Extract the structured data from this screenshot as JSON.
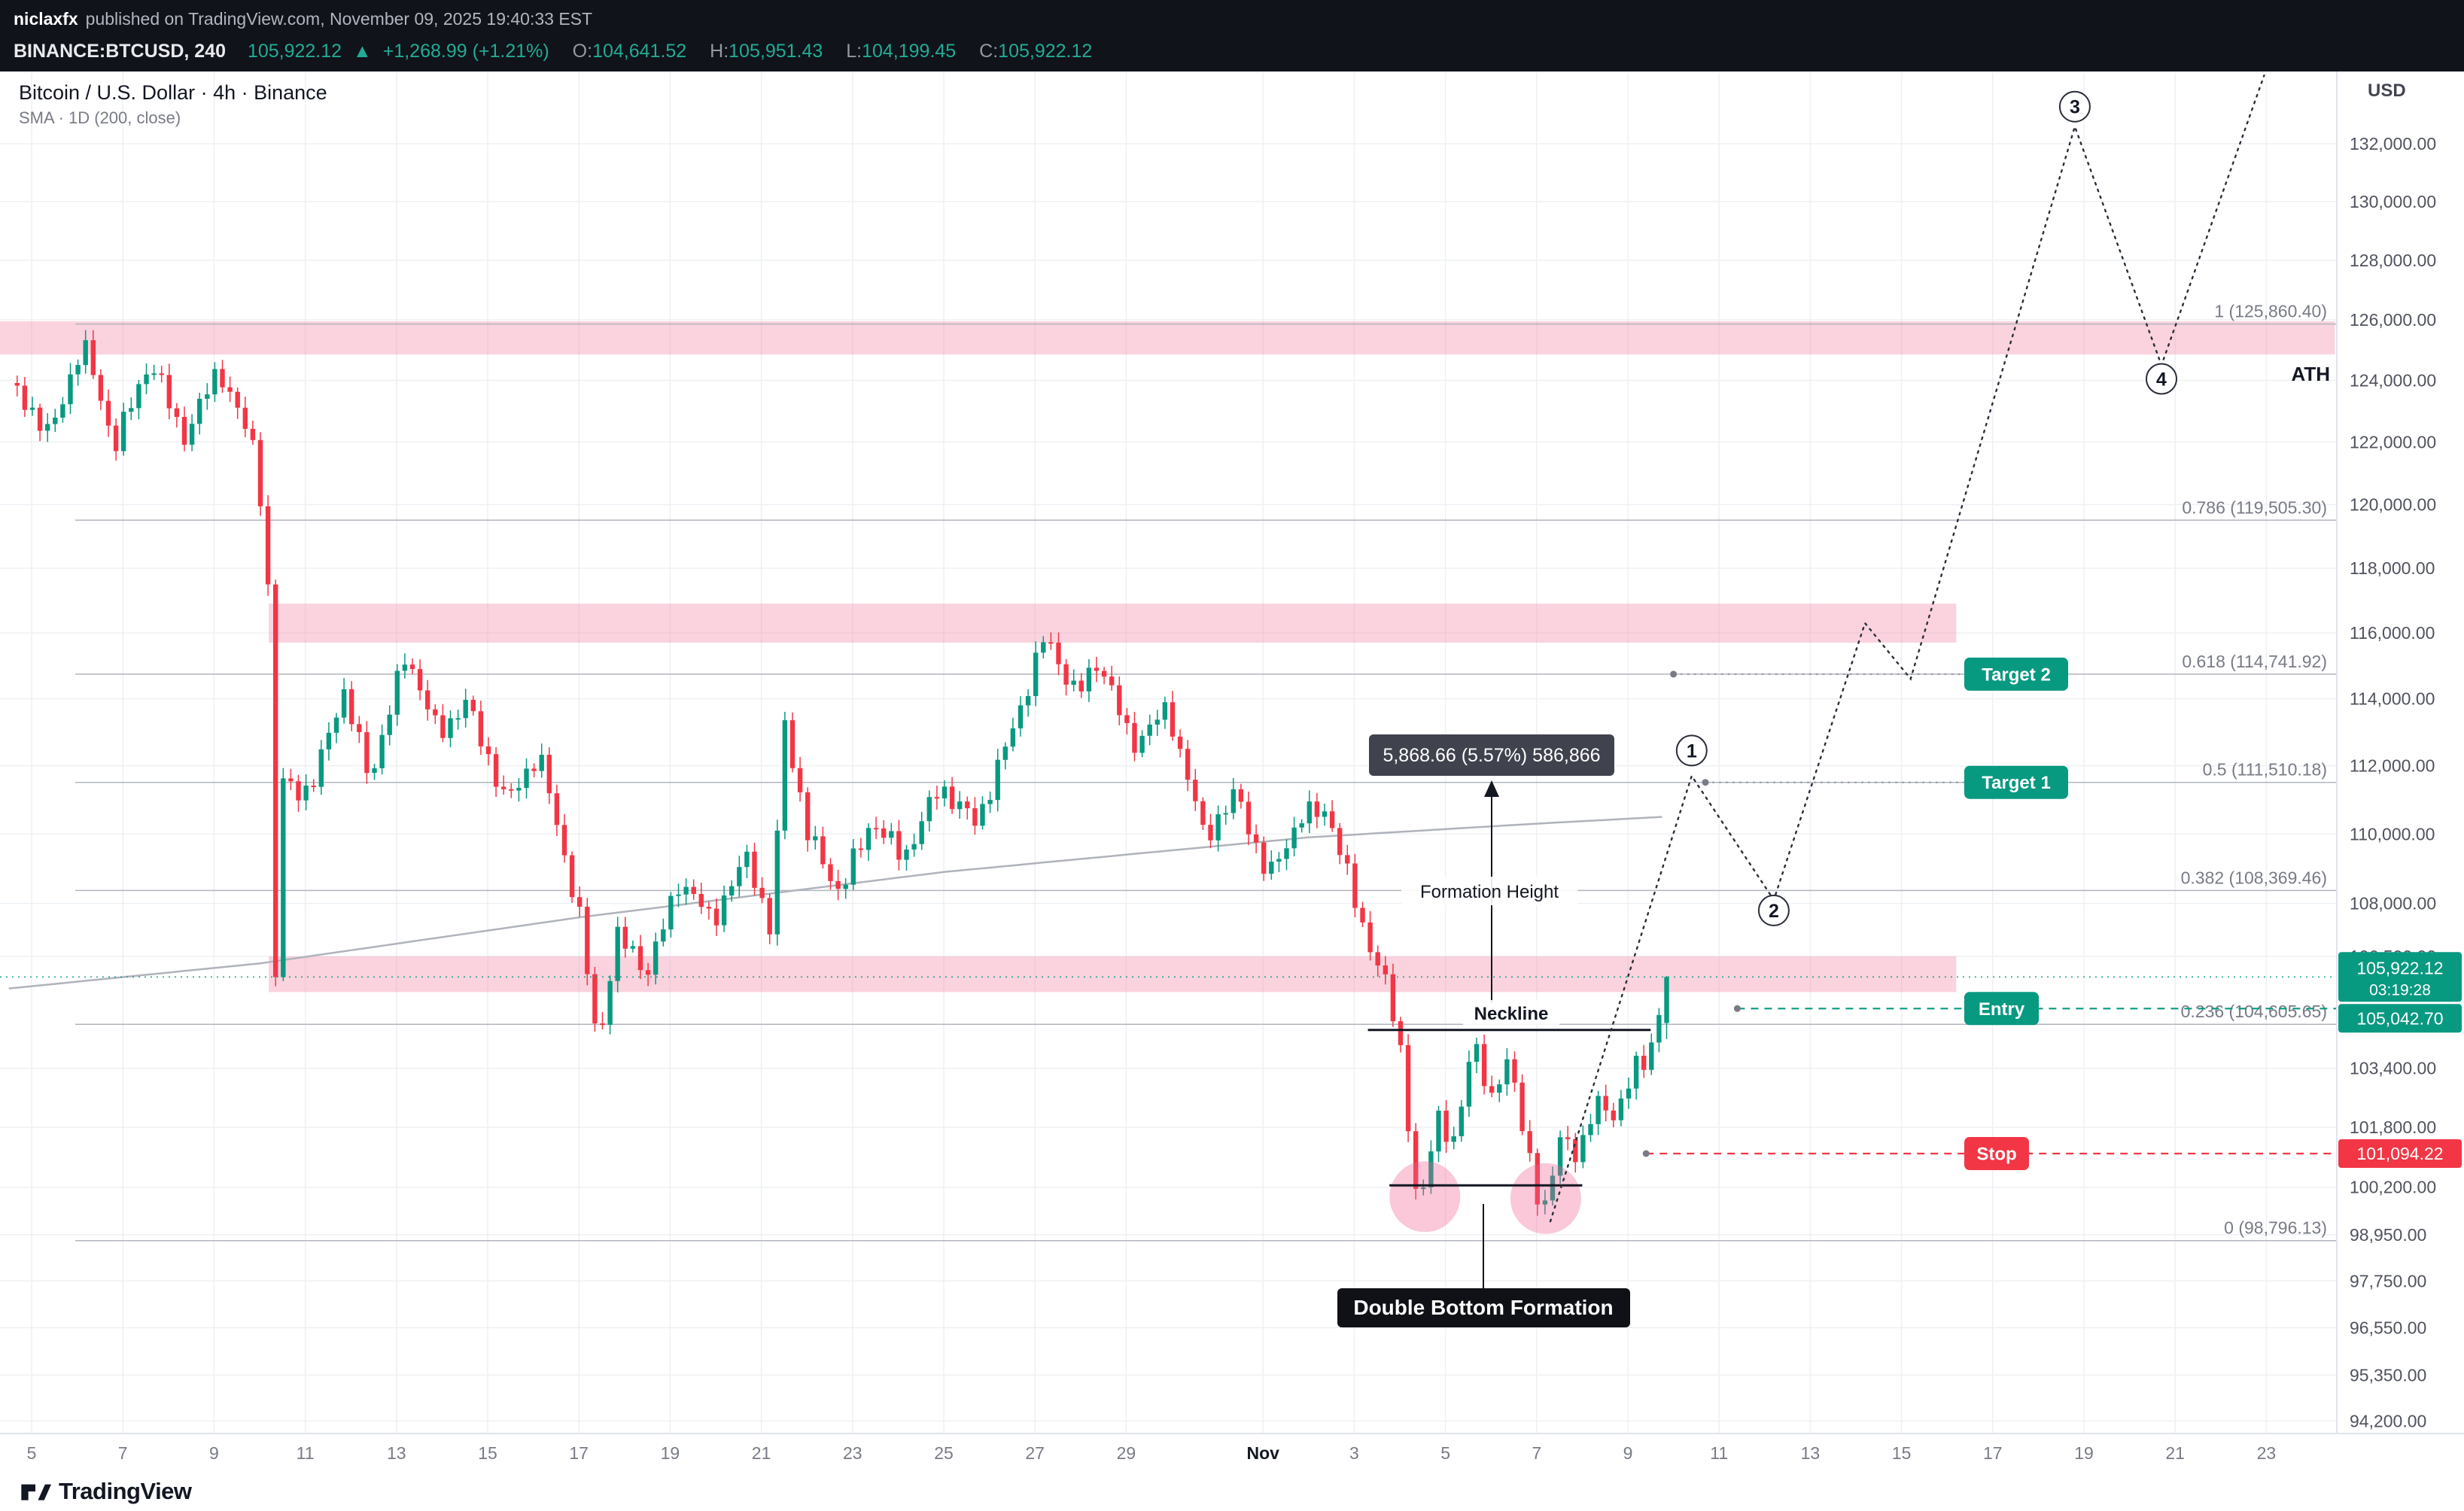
{
  "colors": {
    "up": "#089981",
    "down": "#f23645",
    "zone_pink": "rgba(242,139,168,0.38)",
    "fib_gray": "#787b86",
    "grid": "#eef0f3",
    "sma": "#b0b3bc",
    "projection": "#2a2e39",
    "measure_box": "#40434e",
    "double_bottom_box": "#0f1116"
  },
  "header": {
    "author": "niclaxfx",
    "published_text": "published on TradingView.com, November 09, 2025 19:40:33 EST",
    "quote": {
      "symbol": "BINANCE:BTCUSD, 240",
      "last": "105,922.12",
      "direction": "▲",
      "change": "+1,268.99 (+1.21%)",
      "o_label": "O:",
      "o": "104,641.52",
      "h_label": "H:",
      "h": "105,951.43",
      "l_label": "L:",
      "l": "104,199.45",
      "c_label": "C:",
      "c": "105,922.12"
    }
  },
  "legend": {
    "title": "Bitcoin / U.S. Dollar · 4h · Binance",
    "indicator": "SMA · 1D (200, close)"
  },
  "footer": {
    "brand": "TradingView"
  },
  "price_axis": {
    "currency": "USD",
    "labels": [
      {
        "text": "132,000.00",
        "price": 132000
      },
      {
        "text": "130,000.00",
        "price": 130000
      },
      {
        "text": "128,000.00",
        "price": 128000
      },
      {
        "text": "126,000.00",
        "price": 126000
      },
      {
        "text": "124,000.00",
        "price": 124000
      },
      {
        "text": "122,000.00",
        "price": 122000
      },
      {
        "text": "120,000.00",
        "price": 120000
      },
      {
        "text": "118,000.00",
        "price": 118000
      },
      {
        "text": "116,000.00",
        "price": 116000
      },
      {
        "text": "114,000.00",
        "price": 114000
      },
      {
        "text": "112,000.00",
        "price": 112000
      },
      {
        "text": "110,000.00",
        "price": 110000
      },
      {
        "text": "108,000.00",
        "price": 108000
      },
      {
        "text": "106,500.00",
        "price": 106500
      },
      {
        "text": "103,400.00",
        "price": 103400
      },
      {
        "text": "101,800.00",
        "price": 101800
      },
      {
        "text": "100,200.00",
        "price": 100200
      },
      {
        "text": "98,950.00",
        "price": 98950
      },
      {
        "text": "97,750.00",
        "price": 97750
      },
      {
        "text": "96,550.00",
        "price": 96550
      },
      {
        "text": "95,350.00",
        "price": 95350
      },
      {
        "text": "94,200.00",
        "price": 94200
      }
    ],
    "badges": [
      {
        "name": "last-price-badge",
        "text": "105,922.12",
        "countdown": "03:19:28",
        "price": 105922.12,
        "color": "#089981"
      },
      {
        "name": "entry-price-badge",
        "text": "105,042.70",
        "price": 105042.7,
        "color": "#089981"
      },
      {
        "name": "stop-price-badge",
        "text": "101,094.22",
        "price": 101094.22,
        "color": "#f23645"
      }
    ]
  },
  "time_axis": {
    "labels": [
      {
        "text": "5",
        "day": 0
      },
      {
        "text": "7",
        "day": 2
      },
      {
        "text": "9",
        "day": 4
      },
      {
        "text": "11",
        "day": 6
      },
      {
        "text": "13",
        "day": 8
      },
      {
        "text": "15",
        "day": 10
      },
      {
        "text": "17",
        "day": 12
      },
      {
        "text": "19",
        "day": 14
      },
      {
        "text": "21",
        "day": 16
      },
      {
        "text": "23",
        "day": 18
      },
      {
        "text": "25",
        "day": 20
      },
      {
        "text": "27",
        "day": 22
      },
      {
        "text": "29",
        "day": 24
      },
      {
        "text": "Nov",
        "day": 27,
        "bold": true
      },
      {
        "text": "3",
        "day": 29
      },
      {
        "text": "5",
        "day": 31
      },
      {
        "text": "7",
        "day": 33
      },
      {
        "text": "9",
        "day": 35
      },
      {
        "text": "11",
        "day": 37
      },
      {
        "text": "13",
        "day": 39
      },
      {
        "text": "15",
        "day": 41
      },
      {
        "text": "17",
        "day": 43
      },
      {
        "text": "19",
        "day": 45
      },
      {
        "text": "21",
        "day": 47
      },
      {
        "text": "23",
        "day": 49
      }
    ]
  },
  "annotations": {
    "ath_label": "ATH",
    "measure_label": "5,868.66 (5.57%) 586,866",
    "formation_height_label": "Formation Height",
    "neckline_label": "Neckline",
    "double_bottom_label": "Double Bottom Formation",
    "trade_labels": [
      {
        "name": "target-2",
        "text": "Target 2",
        "price": 114741.92,
        "color": "#089981",
        "leader_start": 36.0
      },
      {
        "name": "target-1",
        "text": "Target 1",
        "price": 111510.18,
        "color": "#089981",
        "leader_start": 36.7
      },
      {
        "name": "entry",
        "text": "Entry",
        "price": 105042.7,
        "color": "#089981"
      },
      {
        "name": "stop",
        "text": "Stop",
        "price": 101094.22,
        "color": "#f23645"
      }
    ],
    "wave_markers": [
      {
        "label": "1",
        "day": 36.4,
        "price": 112450
      },
      {
        "label": "2",
        "day": 38.2,
        "price": 107800
      },
      {
        "label": "3",
        "day": 44.8,
        "price": 133300
      },
      {
        "label": "4",
        "day": 46.7,
        "price": 124050
      }
    ]
  },
  "chart_data": {
    "type": "candlestick",
    "symbol": "BINANCE:BTCUSD",
    "interval": "4h",
    "title": "Bitcoin / U.S. Dollar · 4h · Binance",
    "yscale": "log",
    "ylim": [
      93890,
      134540
    ],
    "x_unit": "days since Oct 5, 2025",
    "xlim": [
      -0.7,
      50.5
    ],
    "candles_per_day": 6,
    "t_start": -0.4,
    "candle_count": 218,
    "last_candle": {
      "o": 104641.52,
      "h": 105951.43,
      "l": 104199.45,
      "c": 105922.12
    },
    "price_path": [
      [
        -0.4,
        123800
      ],
      [
        0,
        123200
      ],
      [
        0.5,
        122200
      ],
      [
        1.2,
        125300
      ],
      [
        1.9,
        121900
      ],
      [
        2.7,
        124700
      ],
      [
        3.4,
        122100
      ],
      [
        4.2,
        124400
      ],
      [
        5.0,
        121600
      ],
      [
        5.25,
        118500
      ],
      [
        5.45,
        104800
      ],
      [
        5.6,
        111500
      ],
      [
        6.2,
        111200
      ],
      [
        6.9,
        114300
      ],
      [
        7.5,
        111600
      ],
      [
        8.3,
        115400
      ],
      [
        9.0,
        112900
      ],
      [
        9.6,
        113900
      ],
      [
        10.5,
        110900
      ],
      [
        11.2,
        112400
      ],
      [
        12.1,
        107600
      ],
      [
        12.5,
        103900
      ],
      [
        12.9,
        107100
      ],
      [
        13.6,
        106100
      ],
      [
        14.3,
        108700
      ],
      [
        15.0,
        107500
      ],
      [
        15.8,
        109400
      ],
      [
        16.3,
        107100
      ],
      [
        16.6,
        113300
      ],
      [
        17.1,
        110000
      ],
      [
        17.8,
        108300
      ],
      [
        18.5,
        110400
      ],
      [
        19.2,
        109300
      ],
      [
        20.0,
        111400
      ],
      [
        20.8,
        110300
      ],
      [
        21.6,
        113100
      ],
      [
        22.3,
        115900
      ],
      [
        23.0,
        114100
      ],
      [
        23.5,
        115200
      ],
      [
        24.2,
        112600
      ],
      [
        25.0,
        113700
      ],
      [
        25.8,
        109900
      ],
      [
        26.5,
        111200
      ],
      [
        27.2,
        108700
      ],
      [
        27.9,
        110500
      ],
      [
        28.5,
        110700
      ],
      [
        29.2,
        107600
      ],
      [
        29.8,
        105600
      ],
      [
        30.1,
        103900
      ],
      [
        30.5,
        99300
      ],
      [
        30.9,
        102200
      ],
      [
        31.3,
        101300
      ],
      [
        31.7,
        104300
      ],
      [
        32.1,
        102500
      ],
      [
        32.5,
        103700
      ],
      [
        32.9,
        101100
      ],
      [
        33.2,
        99200
      ],
      [
        33.6,
        101700
      ],
      [
        34.0,
        100800
      ],
      [
        34.4,
        102800
      ],
      [
        34.7,
        101900
      ],
      [
        35.0,
        102400
      ],
      [
        35.2,
        103900
      ],
      [
        35.4,
        103300
      ],
      [
        35.77,
        104641
      ],
      [
        35.93,
        105922
      ]
    ],
    "sma_200d_path": [
      [
        -0.5,
        105600
      ],
      [
        5,
        106300
      ],
      [
        12,
        107600
      ],
      [
        20,
        108900
      ],
      [
        28,
        109900
      ],
      [
        33,
        110300
      ],
      [
        35.8,
        110500
      ]
    ],
    "projection_path": [
      [
        33.3,
        99300
      ],
      [
        36.4,
        111700
      ],
      [
        38.2,
        108100
      ],
      [
        40.2,
        116300
      ],
      [
        41.2,
        114600
      ],
      [
        44.8,
        132600
      ],
      [
        46.7,
        124500
      ],
      [
        48.95,
        134400
      ]
    ],
    "fib_retracement": {
      "levels": [
        {
          "level": 1,
          "price": 125860.4,
          "text": "1 (125,860.40)"
        },
        {
          "level": 0.786,
          "price": 119505.3,
          "text": "0.786 (119,505.30)"
        },
        {
          "level": 0.618,
          "price": 114741.92,
          "text": "0.618 (114,741.92)"
        },
        {
          "level": 0.5,
          "price": 111510.18,
          "text": "0.5 (111,510.18)"
        },
        {
          "level": 0.382,
          "price": 108369.46,
          "text": "0.382 (108,369.46)"
        },
        {
          "level": 0.236,
          "price": 104605.65,
          "text": "0.236 (104,605.65)"
        },
        {
          "level": 0,
          "price": 98796.13,
          "text": "0 (98,796.13)"
        }
      ]
    },
    "supply_zones": [
      {
        "price_range": [
          124850,
          125950
        ],
        "day_range": [
          -0.7,
          50.5
        ]
      },
      {
        "price_range": [
          115700,
          116900
        ],
        "day_range": [
          5.2,
          42.2
        ]
      },
      {
        "price_range": [
          105500,
          106500
        ],
        "day_range": [
          5.2,
          42.2
        ]
      }
    ],
    "key_lines": {
      "current_price_line": {
        "price": 105922.12
      },
      "neckline": {
        "price": 104450,
        "day_range": [
          29.3,
          35.5
        ]
      },
      "double_bottom_connector": {
        "price": 100250,
        "day_range": [
          29.77,
          34.0
        ]
      },
      "entry_line": {
        "price": 105042.7,
        "day_start": 37.4
      },
      "stop_line": {
        "price": 101094.22,
        "day_start": 35.4
      }
    },
    "double_bottom_circles": [
      {
        "day": 30.55,
        "price": 99950
      },
      {
        "day": 33.2,
        "price": 99900
      }
    ]
  }
}
